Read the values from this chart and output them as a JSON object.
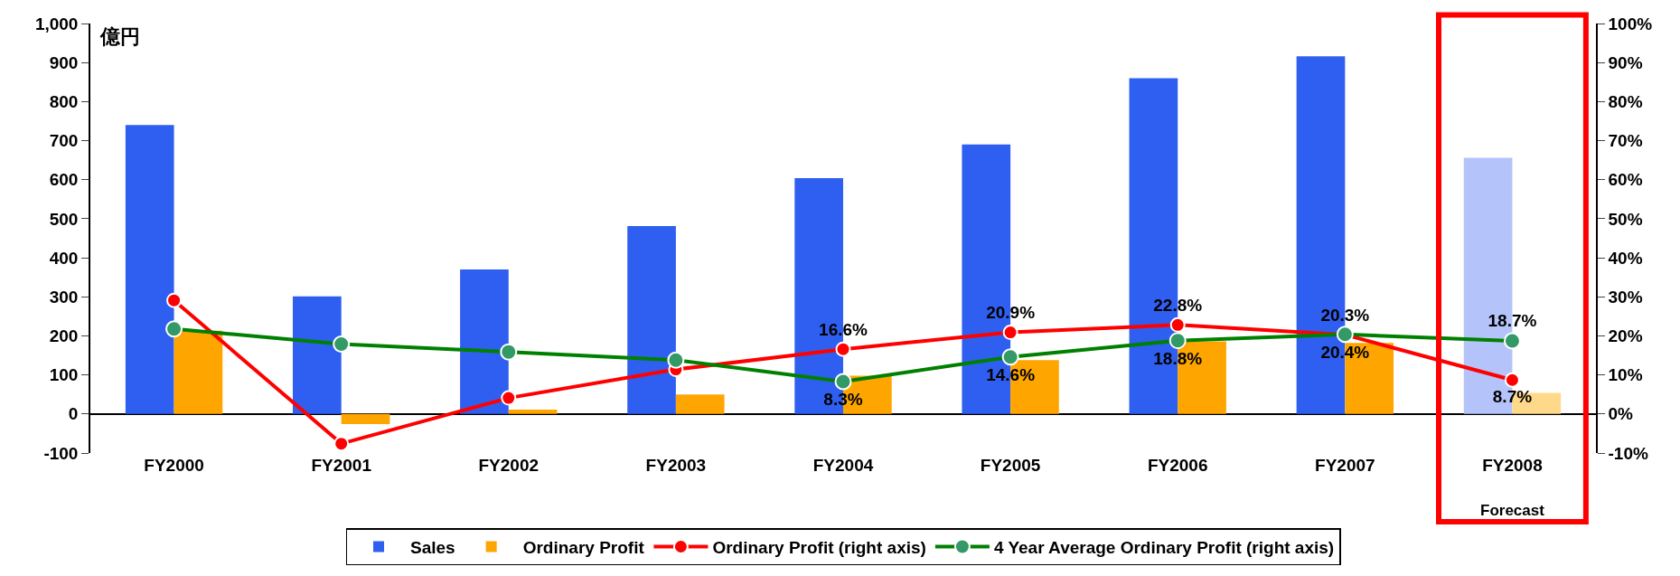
{
  "chart_data": {
    "type": "bar",
    "ylabel": "億円",
    "categories": [
      "FY2000",
      "FY2001",
      "FY2002",
      "FY2003",
      "FY2004",
      "FY2005",
      "FY2006",
      "FY2007",
      "FY2008"
    ],
    "series": [
      {
        "name": "Sales",
        "color": "#2f5ff0",
        "colors": [
          "#2f5ff0",
          "#2f5ff0",
          "#2f5ff0",
          "#2f5ff0",
          "#2f5ff0",
          "#2f5ff0",
          "#2f5ff0",
          "#2f5ff0",
          "#b4c4fa"
        ],
        "values": [
          740,
          301,
          370,
          481,
          604,
          690,
          860,
          916,
          656
        ]
      },
      {
        "name": "Ordinary Profit",
        "color": "#ffa500",
        "colors": [
          "#ffa500",
          "#ffa500",
          "#ffa500",
          "#ffa500",
          "#ffa500",
          "#ffa500",
          "#ffa500",
          "#ffa500",
          "#ffd98a"
        ],
        "values": [
          213,
          -26,
          11,
          50,
          98,
          138,
          186,
          182,
          54
        ]
      },
      {
        "name": "Ordinary Profit (right axis)",
        "type": "line",
        "axis": "y2",
        "color": "#ff0000",
        "values": [
          29.1,
          -7.6,
          4.1,
          11.4,
          16.6,
          20.9,
          22.8,
          20.3,
          8.7
        ],
        "value_labels": [
          null,
          null,
          null,
          null,
          "16.6%",
          "20.9%",
          "22.8%",
          "20.3%",
          "8.7%"
        ]
      },
      {
        "name": "4 Year Average Ordinary Profit (right axis)",
        "type": "line",
        "axis": "y2",
        "color": "#008000",
        "values": [
          21.8,
          17.9,
          15.9,
          13.8,
          8.3,
          14.6,
          18.8,
          20.4,
          18.7
        ],
        "value_labels": [
          null,
          null,
          null,
          null,
          "8.3%",
          "14.6%",
          "18.8%",
          "20.4%",
          "18.7%"
        ]
      }
    ],
    "ylim": [
      -100,
      1000
    ],
    "yticks": [
      -100,
      0,
      100,
      200,
      300,
      400,
      500,
      600,
      700,
      800,
      900,
      {
        "value": 1000,
        "label": "1,000"
      }
    ],
    "y2lim": [
      -10,
      100
    ],
    "y2ticks": [
      {
        "value": -10,
        "label": "-10%"
      },
      {
        "value": 0,
        "label": "0%"
      },
      {
        "value": 10,
        "label": "10%"
      },
      {
        "value": 20,
        "label": "20%"
      },
      {
        "value": 30,
        "label": "30%"
      },
      {
        "value": 40,
        "label": "40%"
      },
      {
        "value": 50,
        "label": "50%"
      },
      {
        "value": 60,
        "label": "60%"
      },
      {
        "value": 70,
        "label": "70%"
      },
      {
        "value": 80,
        "label": "80%"
      },
      {
        "value": 90,
        "label": "90%"
      },
      {
        "value": 100,
        "label": "100%"
      }
    ],
    "annotations": [
      "Forecast"
    ],
    "marker": "circle",
    "line_style": "solid",
    "legend": "bottom"
  }
}
